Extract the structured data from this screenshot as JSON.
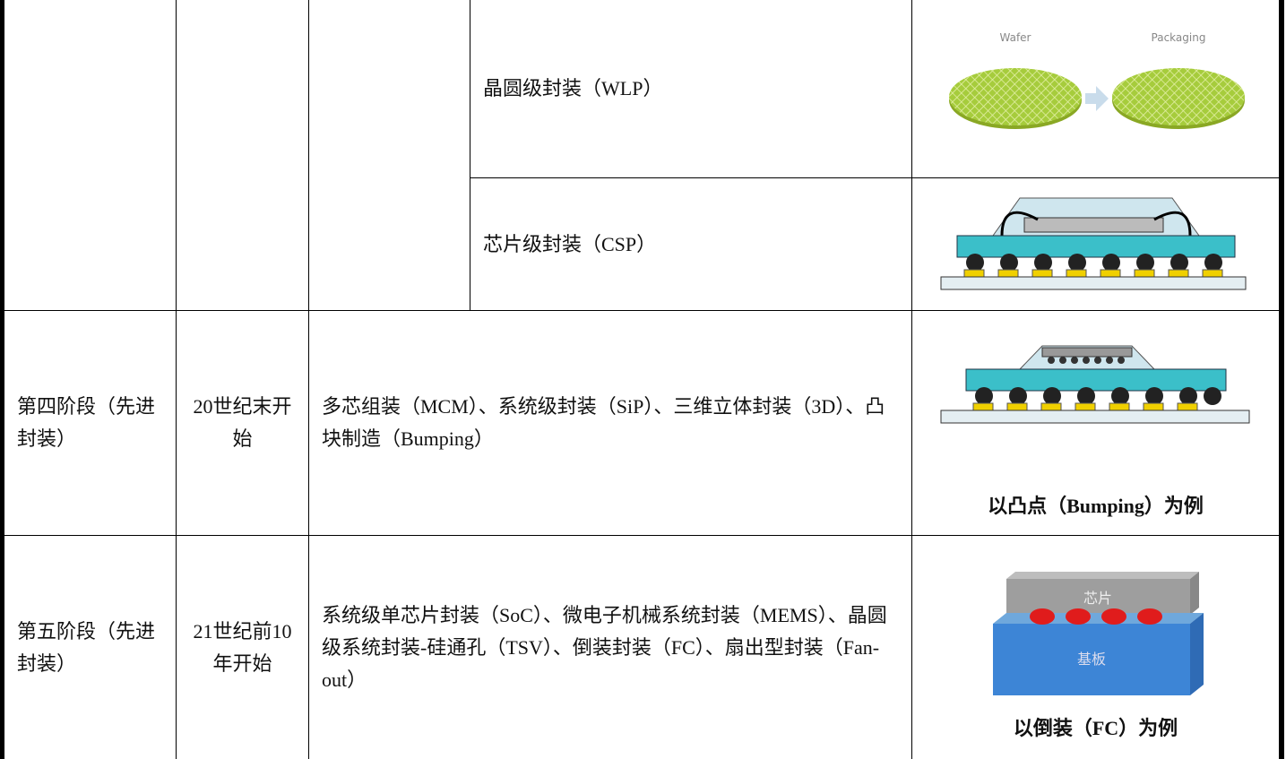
{
  "table": {
    "rows": [
      {
        "name": "晶圆级封装（WLP）",
        "image_labels": [
          "Wafer",
          "Packaging"
        ]
      },
      {
        "name": "芯片级封装（CSP）"
      },
      {
        "stage": "第四阶段（先进封装）",
        "period": "20世纪末开始",
        "techniques": "多芯组装（MCM）、系统级封装（SiP）、三维立体封装（3D）、凸块制造（Bumping）",
        "caption": "以凸点（Bumping）为例"
      },
      {
        "stage": "第五阶段（先进封装）",
        "period": "21世纪前10年开始",
        "techniques": "系统级单芯片封装（SoC）、微电子机械系统封装（MEMS）、晶圆级系统封装-硅通孔（TSV）、倒装封装（FC）、扇出型封装（Fan-out）",
        "caption": "以倒装（FC）为例",
        "image_labels": [
          "芯片",
          "基板"
        ]
      }
    ]
  }
}
